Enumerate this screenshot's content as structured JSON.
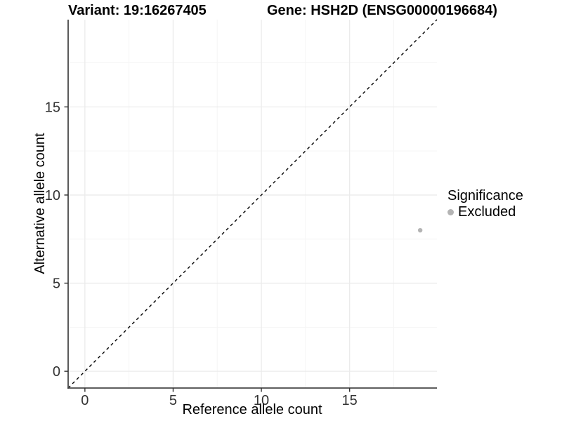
{
  "header": {
    "title_variant": "Variant: 19:16267405",
    "title_gene": "Gene: HSH2D (ENSG00000196684)"
  },
  "axes": {
    "x": {
      "label": "Reference allele count",
      "ticks": [
        0,
        5,
        10,
        15
      ],
      "minor_ticks": [
        2.5,
        7.5,
        12.5,
        17.5
      ],
      "domain": [
        -0.95,
        19.95
      ]
    },
    "y": {
      "label": "Alternative allele count",
      "ticks": [
        0,
        5,
        10,
        15
      ],
      "minor_ticks": [
        2.5,
        7.5,
        12.5,
        17.5
      ],
      "domain": [
        -0.95,
        19.95
      ]
    }
  },
  "legend": {
    "title": "Significance",
    "items": [
      {
        "label": "Excluded",
        "color": "#b4b4b4"
      }
    ]
  },
  "chart_data": {
    "type": "scatter",
    "title": "Variant: 19:16267405 — Gene: HSH2D (ENSG00000196684)",
    "xlabel": "Reference allele count",
    "ylabel": "Alternative allele count",
    "xlim": [
      -0.95,
      19.95
    ],
    "ylim": [
      -0.95,
      19.95
    ],
    "xticks": [
      0,
      5,
      10,
      15
    ],
    "yticks": [
      0,
      5,
      10,
      15
    ],
    "grid": true,
    "legend_position": "right",
    "series": [
      {
        "name": "Excluded",
        "color": "#b4b4b4",
        "point_radius": 3.2,
        "points": [
          [
            19,
            8
          ]
        ]
      }
    ],
    "reference_line": {
      "type": "identity",
      "slope": 1,
      "intercept": 0,
      "style": "dashed",
      "color": "#000000"
    }
  },
  "colors": {
    "background": "#ffffff",
    "grid_major": "#ebebeb",
    "grid_minor": "#f5f5f5",
    "axis_line": "#474747",
    "tick_mark": "#333333",
    "tick_label": "#333333",
    "dashed_line": "#000000",
    "point": "#b4b4b4"
  }
}
